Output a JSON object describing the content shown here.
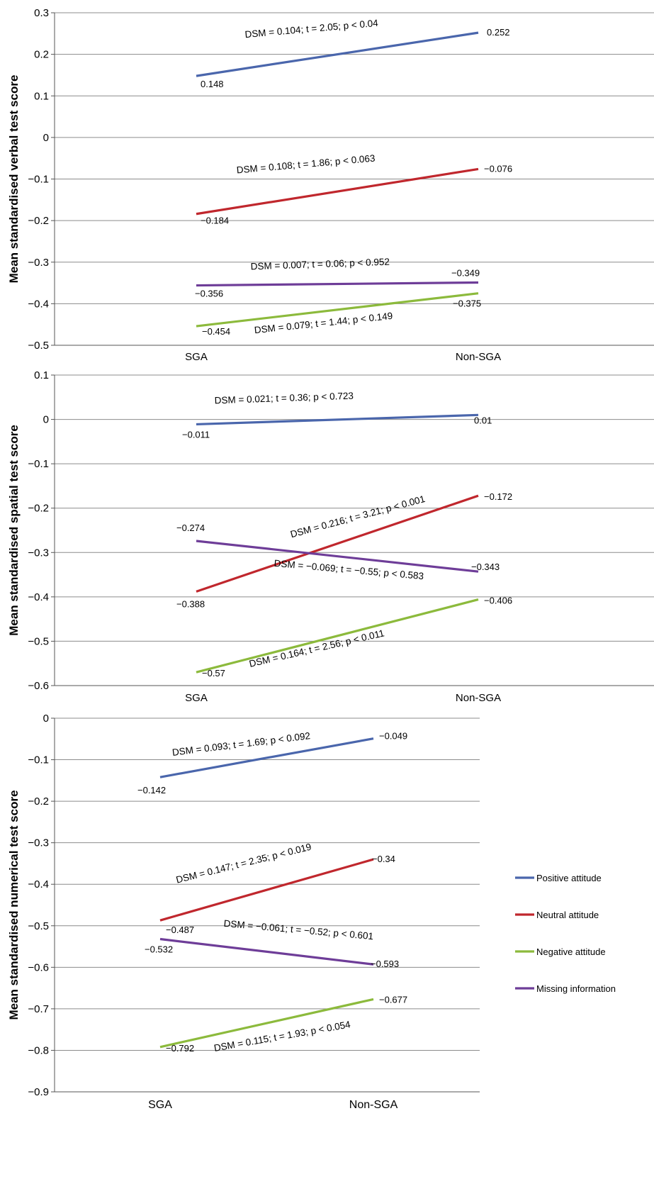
{
  "chart_data": [
    {
      "type": "line",
      "ylabel": "Mean standardised verbal test score",
      "categories": [
        "SGA",
        "Non-SGA"
      ],
      "ylim": [
        -0.5,
        0.3
      ],
      "yticks": [
        "0.3",
        "0.2",
        "0.1",
        "0",
        "−0.1",
        "−0.2",
        "−0.3",
        "−0.4",
        "−0.5"
      ],
      "grid": true,
      "series": [
        {
          "key": "positive",
          "values": [
            0.148,
            0.252
          ],
          "labels": [
            "0.148",
            "0.252"
          ],
          "annotation": "DSM = 0.104; t = 2.05; p < 0.04"
        },
        {
          "key": "neutral",
          "values": [
            -0.184,
            -0.076
          ],
          "labels": [
            "−0.184",
            "−0.076"
          ],
          "annotation": "DSM = 0.108; t = 1.86; p < 0.063"
        },
        {
          "key": "missing",
          "values": [
            -0.356,
            -0.349
          ],
          "labels": [
            "−0.356",
            "−0.349"
          ],
          "annotation": "DSM = 0.007; t = 0.06; p < 0.952"
        },
        {
          "key": "negative",
          "values": [
            -0.454,
            -0.375
          ],
          "labels": [
            "−0.454",
            "−0.375"
          ],
          "annotation": "DSM = 0.079; t = 1.44; p < 0.149"
        }
      ]
    },
    {
      "type": "line",
      "ylabel": "Mean standardised spatial test score",
      "categories": [
        "SGA",
        "Non-SGA"
      ],
      "ylim": [
        -0.6,
        0.1
      ],
      "yticks": [
        "0.1",
        "0",
        "−0.1",
        "−0.2",
        "−0.3",
        "−0.4",
        "−0.5",
        "−0.6"
      ],
      "grid": true,
      "series": [
        {
          "key": "positive",
          "values": [
            -0.011,
            0.01
          ],
          "labels": [
            "−0.011",
            "0.01"
          ],
          "annotation": "DSM = 0.021; t = 0.36; p < 0.723"
        },
        {
          "key": "neutral",
          "values": [
            -0.388,
            -0.172
          ],
          "labels": [
            "−0.388",
            "−0.172"
          ],
          "annotation": "DSM = 0.216; t = 3.21; p < 0.001"
        },
        {
          "key": "missing",
          "values": [
            -0.274,
            -0.343
          ],
          "labels": [
            "−0.274",
            "−0.343"
          ],
          "annotation": "DSM = −0.069; t = −0.55; p < 0.583"
        },
        {
          "key": "negative",
          "values": [
            -0.57,
            -0.406
          ],
          "labels": [
            "−0.57",
            "−0.406"
          ],
          "annotation": "DSM = 0.164; t = 2.56; p < 0.011"
        }
      ]
    },
    {
      "type": "line",
      "ylabel": "Mean standardised numerical test score",
      "categories": [
        "SGA",
        "Non-SGA"
      ],
      "ylim": [
        -0.9,
        0
      ],
      "yticks": [
        "0",
        "−0.1",
        "−0.2",
        "−0.3",
        "−0.4",
        "−0.5",
        "−0.6",
        "−0.7",
        "−0.8",
        "−0.9"
      ],
      "grid": true,
      "legend_position": "right",
      "series": [
        {
          "key": "positive",
          "values": [
            -0.142,
            -0.049
          ],
          "labels": [
            "−0.142",
            "−0.049"
          ],
          "annotation": "DSM = 0.093; t = 1.69; p < 0.092"
        },
        {
          "key": "neutral",
          "values": [
            -0.487,
            -0.34
          ],
          "labels": [
            "−0.487",
            "−0.34"
          ],
          "annotation": "DSM = 0.147; t = 2.35; p < 0.019"
        },
        {
          "key": "missing",
          "values": [
            -0.532,
            -0.593
          ],
          "labels": [
            "−0.532",
            "−0.593"
          ],
          "annotation": "DSM = −0.061; t = −0.52; p < 0.601"
        },
        {
          "key": "negative",
          "values": [
            -0.792,
            -0.677
          ],
          "labels": [
            "−0.792",
            "−0.677"
          ],
          "annotation": "DSM = 0.115; t = 1.93; p < 0.054"
        }
      ]
    }
  ],
  "legend": [
    {
      "key": "positive",
      "label": "Positive attitude",
      "color": "#4a66ac"
    },
    {
      "key": "neutral",
      "label": "Neutral attitude",
      "color": "#c0272d"
    },
    {
      "key": "negative",
      "label": "Negative attitude",
      "color": "#8cba3c"
    },
    {
      "key": "missing",
      "label": "Missing information",
      "color": "#6e3d98"
    }
  ]
}
